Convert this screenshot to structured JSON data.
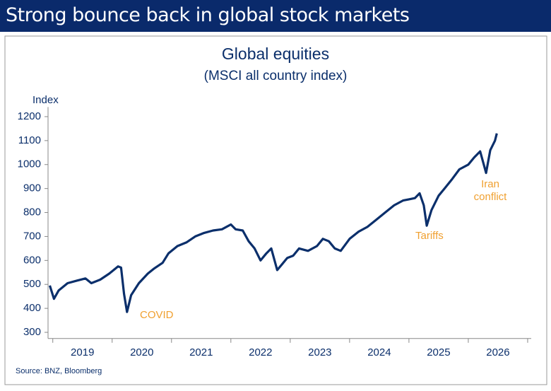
{
  "header": {
    "title": "Strong bounce back in global stock markets"
  },
  "chart_data": {
    "type": "line",
    "title": "Global equities",
    "subtitle": "(MSCI all country index)",
    "y_label": "Index",
    "source": "Source: BNZ, Bloomberg",
    "annotations": [
      "COVID",
      "Tariffs",
      "Iran conflict"
    ],
    "annotation_color": "#f0a030",
    "x": [
      2018.95,
      2019.02,
      2019.1,
      2019.25,
      2019.4,
      2019.55,
      2019.65,
      2019.8,
      2019.95,
      2020.1,
      2020.15,
      2020.2,
      2020.25,
      2020.32,
      2020.45,
      2020.6,
      2020.7,
      2020.85,
      2020.95,
      2021.1,
      2021.25,
      2021.4,
      2021.55,
      2021.7,
      2021.85,
      2022.0,
      2022.08,
      2022.2,
      2022.3,
      2022.4,
      2022.5,
      2022.6,
      2022.68,
      2022.78,
      2022.85,
      2022.95,
      2023.05,
      2023.15,
      2023.3,
      2023.45,
      2023.55,
      2023.65,
      2023.75,
      2023.85,
      2024.0,
      2024.15,
      2024.3,
      2024.45,
      2024.6,
      2024.75,
      2024.9,
      2025.0,
      2025.1,
      2025.18,
      2025.25,
      2025.3,
      2025.38,
      2025.5,
      2025.6,
      2025.73,
      2025.85,
      2026.0,
      2026.1,
      2026.2,
      2026.3,
      2026.37,
      2026.45,
      2026.48
    ],
    "series": [
      {
        "name": "MSCI all country index",
        "color": "#0b2f6b",
        "values": [
          495,
          440,
          475,
          505,
          515,
          525,
          505,
          520,
          545,
          575,
          570,
          460,
          385,
          455,
          505,
          545,
          565,
          590,
          630,
          660,
          675,
          700,
          715,
          725,
          730,
          750,
          730,
          725,
          680,
          650,
          600,
          630,
          650,
          560,
          580,
          610,
          620,
          650,
          640,
          660,
          690,
          680,
          650,
          640,
          690,
          720,
          740,
          770,
          800,
          830,
          850,
          855,
          860,
          880,
          830,
          745,
          810,
          870,
          900,
          940,
          980,
          1000,
          1030,
          1055,
          965,
          1060,
          1100,
          1130
        ]
      }
    ],
    "xlim": [
      2018.92,
      2027.06
    ],
    "xticks": [
      {
        "value": 2019.5,
        "label": "2019"
      },
      {
        "value": 2020.5,
        "label": "2020"
      },
      {
        "value": 2021.5,
        "label": "2021"
      },
      {
        "value": 2022.5,
        "label": "2022"
      },
      {
        "value": 2023.5,
        "label": "2023"
      },
      {
        "value": 2024.5,
        "label": "2024"
      },
      {
        "value": 2025.5,
        "label": "2025"
      },
      {
        "value": 2026.5,
        "label": "2026"
      }
    ],
    "ylim": [
      280,
      1240
    ],
    "yticks": [
      300,
      400,
      500,
      600,
      700,
      800,
      900,
      1000,
      1100,
      1200
    ],
    "grid": false
  }
}
